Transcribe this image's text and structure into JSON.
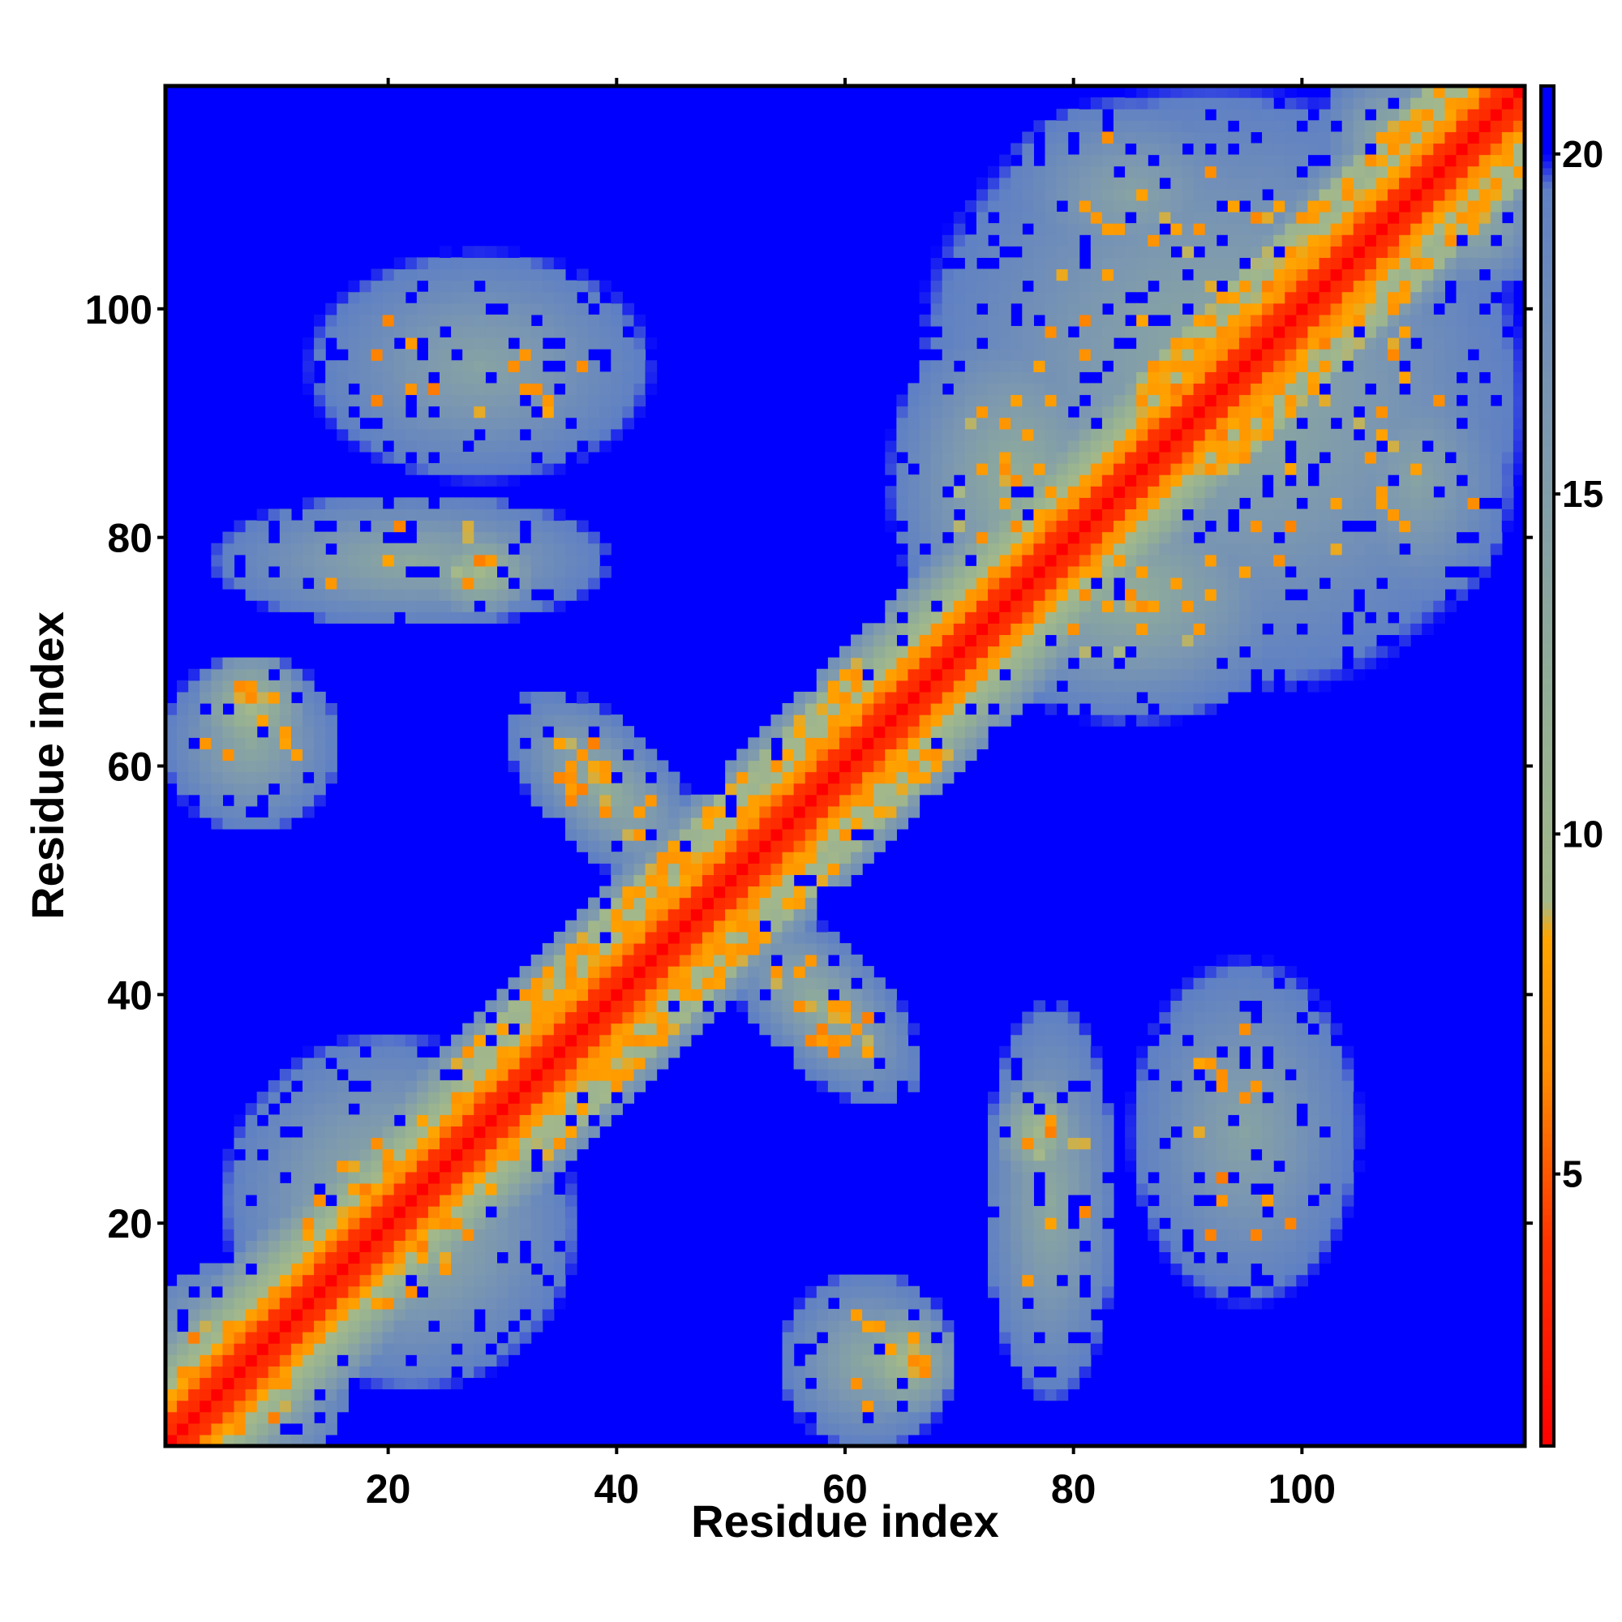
{
  "chart_data": {
    "type": "heatmap",
    "title": "",
    "xlabel": "Residue index",
    "ylabel": "Residue index",
    "xlim": [
      1,
      119
    ],
    "ylim": [
      1,
      119
    ],
    "n_residues": 119,
    "x_ticks": [
      20,
      40,
      60,
      80,
      100
    ],
    "y_ticks": [
      20,
      40,
      60,
      80,
      100
    ],
    "x_tick_labels": [
      "20",
      "40",
      "60",
      "80",
      "100"
    ],
    "y_tick_labels": [
      "20",
      "40",
      "60",
      "80",
      "100"
    ],
    "colorbar": {
      "range": [
        1,
        21
      ],
      "ticks": [
        5,
        10,
        15,
        20
      ],
      "tick_labels": [
        "5",
        "10",
        "15",
        "20"
      ],
      "position": "right",
      "stops": [
        {
          "value": 1,
          "color": "#ff0000"
        },
        {
          "value": 4,
          "color": "#ff3300"
        },
        {
          "value": 6.5,
          "color": "#ff8c00"
        },
        {
          "value": 8.5,
          "color": "#ffa500"
        },
        {
          "value": 9,
          "color": "#a3b88a"
        },
        {
          "value": 12,
          "color": "#93ae96"
        },
        {
          "value": 16,
          "color": "#7c98b0"
        },
        {
          "value": 19.5,
          "color": "#5f80c4"
        },
        {
          "value": 20,
          "color": "#0000ff"
        },
        {
          "value": 21,
          "color": "#0000ff"
        }
      ]
    },
    "description_of_values": "Inter-residue C-alpha distance map; symmetric; cells with distance at or above 20 shown in blue",
    "contact_regions": [
      {
        "x_range": [
          1,
          119
        ],
        "y_range": [
          1,
          119
        ],
        "note": "main diagonal: ~1-4 on diagonal, ~5-8 near-diagonal band"
      },
      {
        "x_range": [
          1,
          14
        ],
        "y_range": [
          1,
          14
        ],
        "note": "local contacts with orange"
      },
      {
        "x_range": [
          12,
          35
        ],
        "y_range": [
          10,
          35
        ],
        "note": "dense patch with orange around (15-30, 15-30)"
      },
      {
        "x_range": [
          48,
          70
        ],
        "y_range": [
          28,
          50
        ],
        "note": "anti-diagonal strand pairing, orange x~50-66 y~28-48"
      },
      {
        "x_range": [
          55,
          70
        ],
        "y_range": [
          1,
          15
        ],
        "note": "patch with orange near (63, 8)"
      },
      {
        "x_range": [
          72,
          85
        ],
        "y_range": [
          1,
          40
        ],
        "note": "vertical patch, orange near (78, 27)"
      },
      {
        "x_range": [
          88,
          103
        ],
        "y_range": [
          5,
          45
        ],
        "note": "diffuse patch, orange near (92, 29)"
      },
      {
        "x_range": [
          70,
          119
        ],
        "y_range": [
          66,
          119
        ],
        "note": "large C-terminal block with scattered orange"
      },
      {
        "x_range": [
          1,
          15
        ],
        "y_range": [
          50,
          70
        ],
        "note": "patch with orange near (9, 64)"
      },
      {
        "x_range": [
          1,
          38
        ],
        "y_range": [
          73,
          83
        ],
        "note": "horizontal band, orange near (26, 77)"
      },
      {
        "x_range": [
          10,
          50
        ],
        "y_range": [
          84,
          115
        ],
        "note": "diffuse upper-left patch, orange near (29, 92)"
      },
      {
        "x_range": [
          28,
          62
        ],
        "y_range": [
          48,
          70
        ],
        "note": "anti-diagonal pairing mirror, orange near (40, 60)"
      }
    ]
  }
}
